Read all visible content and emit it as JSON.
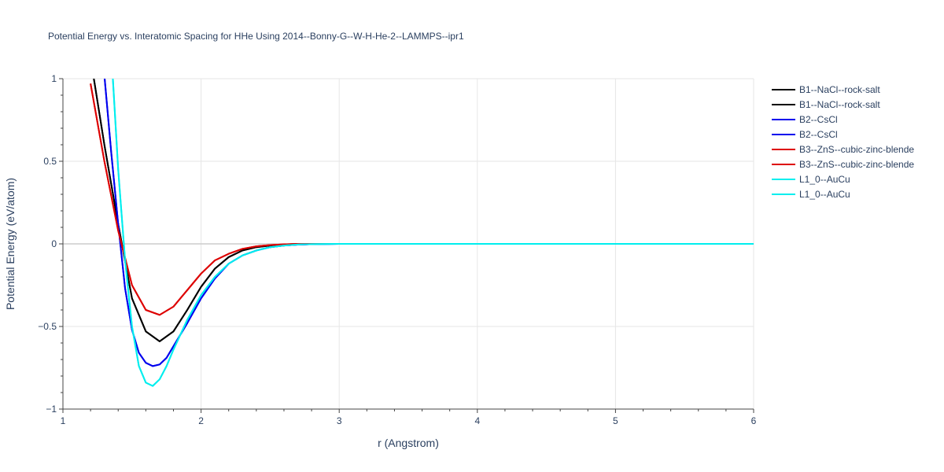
{
  "chart_data": {
    "type": "line",
    "title": "Potential Energy vs. Interatomic Spacing for HHe Using 2014--Bonny-G--W-H-He-2--LAMMPS--ipr1",
    "xlabel": "r (Angstrom)",
    "ylabel": "Potential Energy (eV/atom)",
    "xlim": [
      1,
      6
    ],
    "ylim": [
      -1,
      1
    ],
    "x_ticks": [
      1,
      2,
      3,
      4,
      5,
      6
    ],
    "x_tick_labels": [
      "1",
      "2",
      "3",
      "4",
      "5",
      "6"
    ],
    "y_ticks": [
      -1,
      -0.5,
      0,
      0.5,
      1
    ],
    "y_tick_labels": [
      "−1",
      "−0.5",
      "0",
      "0.5",
      "1"
    ],
    "grid": true,
    "legend_position": "top-right",
    "series": [
      {
        "name": "B1--NaCl--rock-salt",
        "color": "#000000",
        "x": [
          1.22,
          1.3,
          1.4,
          1.5,
          1.6,
          1.7,
          1.8,
          1.9,
          2.0,
          2.1,
          2.2,
          2.3,
          2.4,
          2.5,
          2.6,
          2.7,
          2.8,
          3.0,
          3.5,
          4.0,
          5.0,
          6.0
        ],
        "y": [
          1.02,
          0.6,
          0.12,
          -0.33,
          -0.53,
          -0.59,
          -0.53,
          -0.4,
          -0.26,
          -0.15,
          -0.08,
          -0.04,
          -0.02,
          -0.01,
          -0.004,
          0.0,
          0.0,
          0.0,
          0.0,
          0.0,
          0.0,
          0.0
        ]
      },
      {
        "name": "B1--NaCl--rock-salt",
        "color": "#000000",
        "x": [
          1.22,
          1.3,
          1.4,
          1.5,
          1.6,
          1.7,
          1.8,
          1.9,
          2.0,
          2.1,
          2.2,
          2.3,
          2.4,
          2.5,
          2.6,
          2.7,
          2.8,
          3.0,
          3.5,
          4.0,
          5.0,
          6.0
        ],
        "y": [
          1.02,
          0.6,
          0.12,
          -0.33,
          -0.53,
          -0.59,
          -0.53,
          -0.4,
          -0.26,
          -0.15,
          -0.08,
          -0.04,
          -0.02,
          -0.01,
          -0.004,
          0.0,
          0.0,
          0.0,
          0.0,
          0.0,
          0.0,
          0.0
        ]
      },
      {
        "name": "B2--CsCl",
        "color": "#0000ee",
        "x": [
          1.3,
          1.35,
          1.4,
          1.45,
          1.5,
          1.55,
          1.6,
          1.65,
          1.7,
          1.75,
          1.8,
          1.9,
          2.0,
          2.1,
          2.2,
          2.3,
          2.4,
          2.5,
          2.6,
          2.7,
          2.8,
          3.0,
          3.5,
          4.0,
          5.0,
          6.0
        ],
        "y": [
          1.02,
          0.55,
          0.12,
          -0.27,
          -0.52,
          -0.66,
          -0.72,
          -0.74,
          -0.73,
          -0.69,
          -0.62,
          -0.48,
          -0.33,
          -0.21,
          -0.12,
          -0.07,
          -0.04,
          -0.02,
          -0.01,
          -0.005,
          -0.002,
          0.0,
          0.0,
          0.0,
          0.0,
          0.0
        ]
      },
      {
        "name": "B2--CsCl",
        "color": "#0000ee",
        "x": [
          1.3,
          1.35,
          1.4,
          1.45,
          1.5,
          1.55,
          1.6,
          1.65,
          1.7,
          1.75,
          1.8,
          1.9,
          2.0,
          2.1,
          2.2,
          2.3,
          2.4,
          2.5,
          2.6,
          2.7,
          2.8,
          3.0,
          3.5,
          4.0,
          5.0,
          6.0
        ],
        "y": [
          1.02,
          0.55,
          0.12,
          -0.27,
          -0.52,
          -0.66,
          -0.72,
          -0.74,
          -0.73,
          -0.69,
          -0.62,
          -0.48,
          -0.33,
          -0.21,
          -0.12,
          -0.07,
          -0.04,
          -0.02,
          -0.01,
          -0.005,
          -0.002,
          0.0,
          0.0,
          0.0,
          0.0,
          0.0
        ]
      },
      {
        "name": "B3--ZnS--cubic-zinc-blende",
        "color": "#dd0000",
        "x": [
          1.2,
          1.3,
          1.4,
          1.5,
          1.6,
          1.7,
          1.8,
          1.9,
          2.0,
          2.1,
          2.2,
          2.3,
          2.4,
          2.5,
          2.6,
          2.7,
          3.0,
          3.5,
          4.0,
          5.0,
          6.0
        ],
        "y": [
          0.97,
          0.5,
          0.08,
          -0.25,
          -0.4,
          -0.43,
          -0.38,
          -0.28,
          -0.18,
          -0.1,
          -0.06,
          -0.03,
          -0.015,
          -0.007,
          -0.003,
          0.0,
          0.0,
          0.0,
          0.0,
          0.0,
          0.0
        ]
      },
      {
        "name": "B3--ZnS--cubic-zinc-blende",
        "color": "#dd0000",
        "x": [
          1.2,
          1.3,
          1.4,
          1.5,
          1.6,
          1.7,
          1.8,
          1.9,
          2.0,
          2.1,
          2.2,
          2.3,
          2.4,
          2.5,
          2.6,
          2.7,
          3.0,
          3.5,
          4.0,
          5.0,
          6.0
        ],
        "y": [
          0.97,
          0.5,
          0.08,
          -0.25,
          -0.4,
          -0.43,
          -0.38,
          -0.28,
          -0.18,
          -0.1,
          -0.06,
          -0.03,
          -0.015,
          -0.007,
          -0.003,
          0.0,
          0.0,
          0.0,
          0.0,
          0.0,
          0.0
        ]
      },
      {
        "name": "L1_0--AuCu",
        "color": "#00eeee",
        "x": [
          1.36,
          1.4,
          1.45,
          1.5,
          1.55,
          1.6,
          1.65,
          1.7,
          1.75,
          1.8,
          1.9,
          2.0,
          2.1,
          2.2,
          2.3,
          2.4,
          2.5,
          2.6,
          2.7,
          2.8,
          3.0,
          3.5,
          4.0,
          5.0,
          6.0
        ],
        "y": [
          1.02,
          0.45,
          -0.1,
          -0.5,
          -0.74,
          -0.84,
          -0.86,
          -0.82,
          -0.74,
          -0.64,
          -0.46,
          -0.31,
          -0.2,
          -0.12,
          -0.07,
          -0.04,
          -0.02,
          -0.01,
          -0.004,
          -0.002,
          0.0,
          0.0,
          0.0,
          0.0,
          0.0
        ]
      },
      {
        "name": "L1_0--AuCu",
        "color": "#00eeee",
        "x": [
          1.36,
          1.4,
          1.45,
          1.5,
          1.55,
          1.6,
          1.65,
          1.7,
          1.75,
          1.8,
          1.9,
          2.0,
          2.1,
          2.2,
          2.3,
          2.4,
          2.5,
          2.6,
          2.7,
          2.8,
          3.0,
          3.5,
          4.0,
          5.0,
          6.0
        ],
        "y": [
          1.02,
          0.45,
          -0.1,
          -0.5,
          -0.74,
          -0.84,
          -0.86,
          -0.82,
          -0.74,
          -0.64,
          -0.46,
          -0.31,
          -0.2,
          -0.12,
          -0.07,
          -0.04,
          -0.02,
          -0.01,
          -0.004,
          -0.002,
          0.0,
          0.0,
          0.0,
          0.0,
          0.0
        ]
      }
    ]
  }
}
